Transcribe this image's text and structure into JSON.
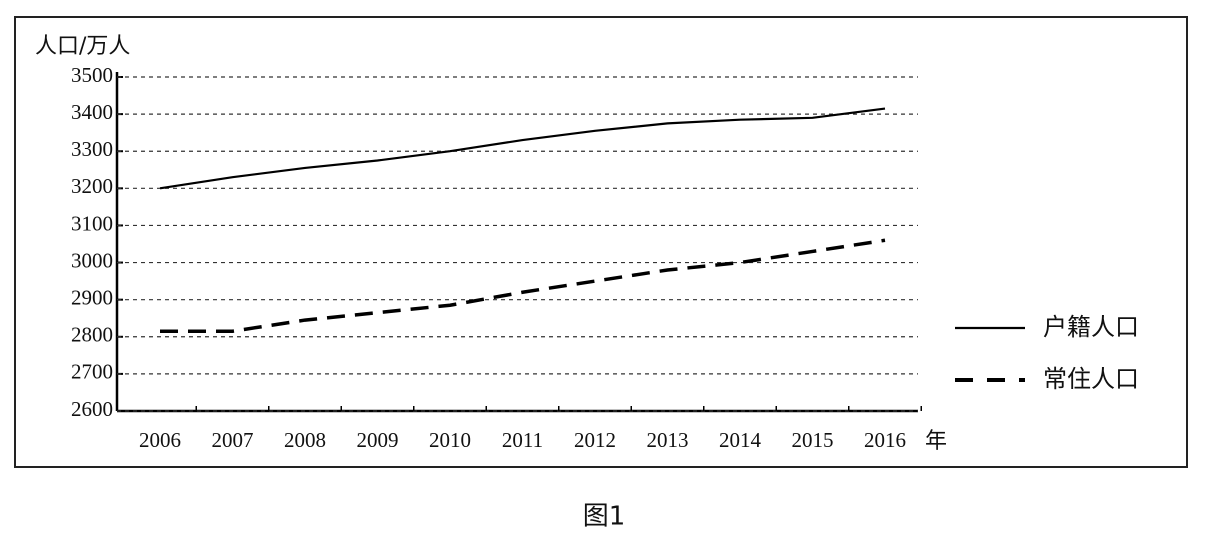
{
  "chart_data": {
    "type": "line",
    "y_label": "人口/万人",
    "x_label": "年",
    "caption": "图1",
    "categories": [
      "2006",
      "2007",
      "2008",
      "2009",
      "2010",
      "2011",
      "2012",
      "2013",
      "2014",
      "2015",
      "2016"
    ],
    "series": [
      {
        "name": "户籍人口",
        "color": "#000000",
        "line_style": "solid",
        "values": [
          3200,
          3230,
          3255,
          3275,
          3300,
          3330,
          3355,
          3375,
          3385,
          3390,
          3415
        ]
      },
      {
        "name": "常住人口",
        "color": "#000000",
        "line_style": "dashed",
        "values": [
          2815,
          2815,
          2845,
          2865,
          2885,
          2920,
          2950,
          2980,
          3000,
          3030,
          3060
        ]
      }
    ],
    "ylim": [
      2600,
      3500
    ],
    "yticks": [
      2600,
      2700,
      2800,
      2900,
      3000,
      3100,
      3200,
      3300,
      3400,
      3500
    ],
    "grid": true
  }
}
